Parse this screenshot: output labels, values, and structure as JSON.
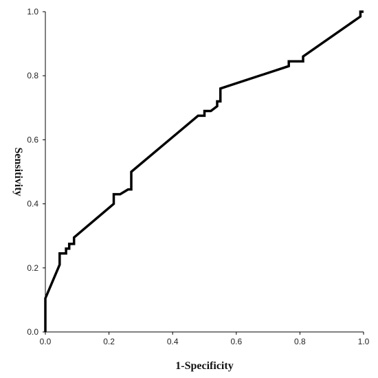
{
  "chart_data": {
    "type": "line",
    "title": "",
    "xlabel": "1-Specificity",
    "ylabel": "Sensitivity",
    "xlim": [
      0.0,
      1.0
    ],
    "ylim": [
      0.0,
      1.0
    ],
    "xticks": [
      "0.0",
      "0.2",
      "0.4",
      "0.6",
      "0.8",
      "1.0"
    ],
    "yticks": [
      "0.0",
      "0.2",
      "0.4",
      "0.6",
      "0.8",
      "1.0"
    ],
    "grid": false,
    "legend": "none",
    "line_color": "#000000",
    "series": [
      {
        "points": [
          [
            0.0,
            0.0
          ],
          [
            0.0,
            0.105
          ],
          [
            0.045,
            0.21
          ],
          [
            0.045,
            0.245
          ],
          [
            0.065,
            0.245
          ],
          [
            0.065,
            0.26
          ],
          [
            0.075,
            0.26
          ],
          [
            0.075,
            0.275
          ],
          [
            0.09,
            0.275
          ],
          [
            0.09,
            0.295
          ],
          [
            0.215,
            0.4
          ],
          [
            0.215,
            0.43
          ],
          [
            0.235,
            0.43
          ],
          [
            0.26,
            0.445
          ],
          [
            0.27,
            0.445
          ],
          [
            0.27,
            0.5
          ],
          [
            0.48,
            0.675
          ],
          [
            0.5,
            0.675
          ],
          [
            0.5,
            0.69
          ],
          [
            0.52,
            0.69
          ],
          [
            0.54,
            0.705
          ],
          [
            0.54,
            0.72
          ],
          [
            0.55,
            0.72
          ],
          [
            0.55,
            0.76
          ],
          [
            0.765,
            0.83
          ],
          [
            0.765,
            0.845
          ],
          [
            0.81,
            0.845
          ],
          [
            0.81,
            0.86
          ],
          [
            0.99,
            0.985
          ],
          [
            0.99,
            1.0
          ],
          [
            1.0,
            1.0
          ]
        ]
      }
    ]
  }
}
